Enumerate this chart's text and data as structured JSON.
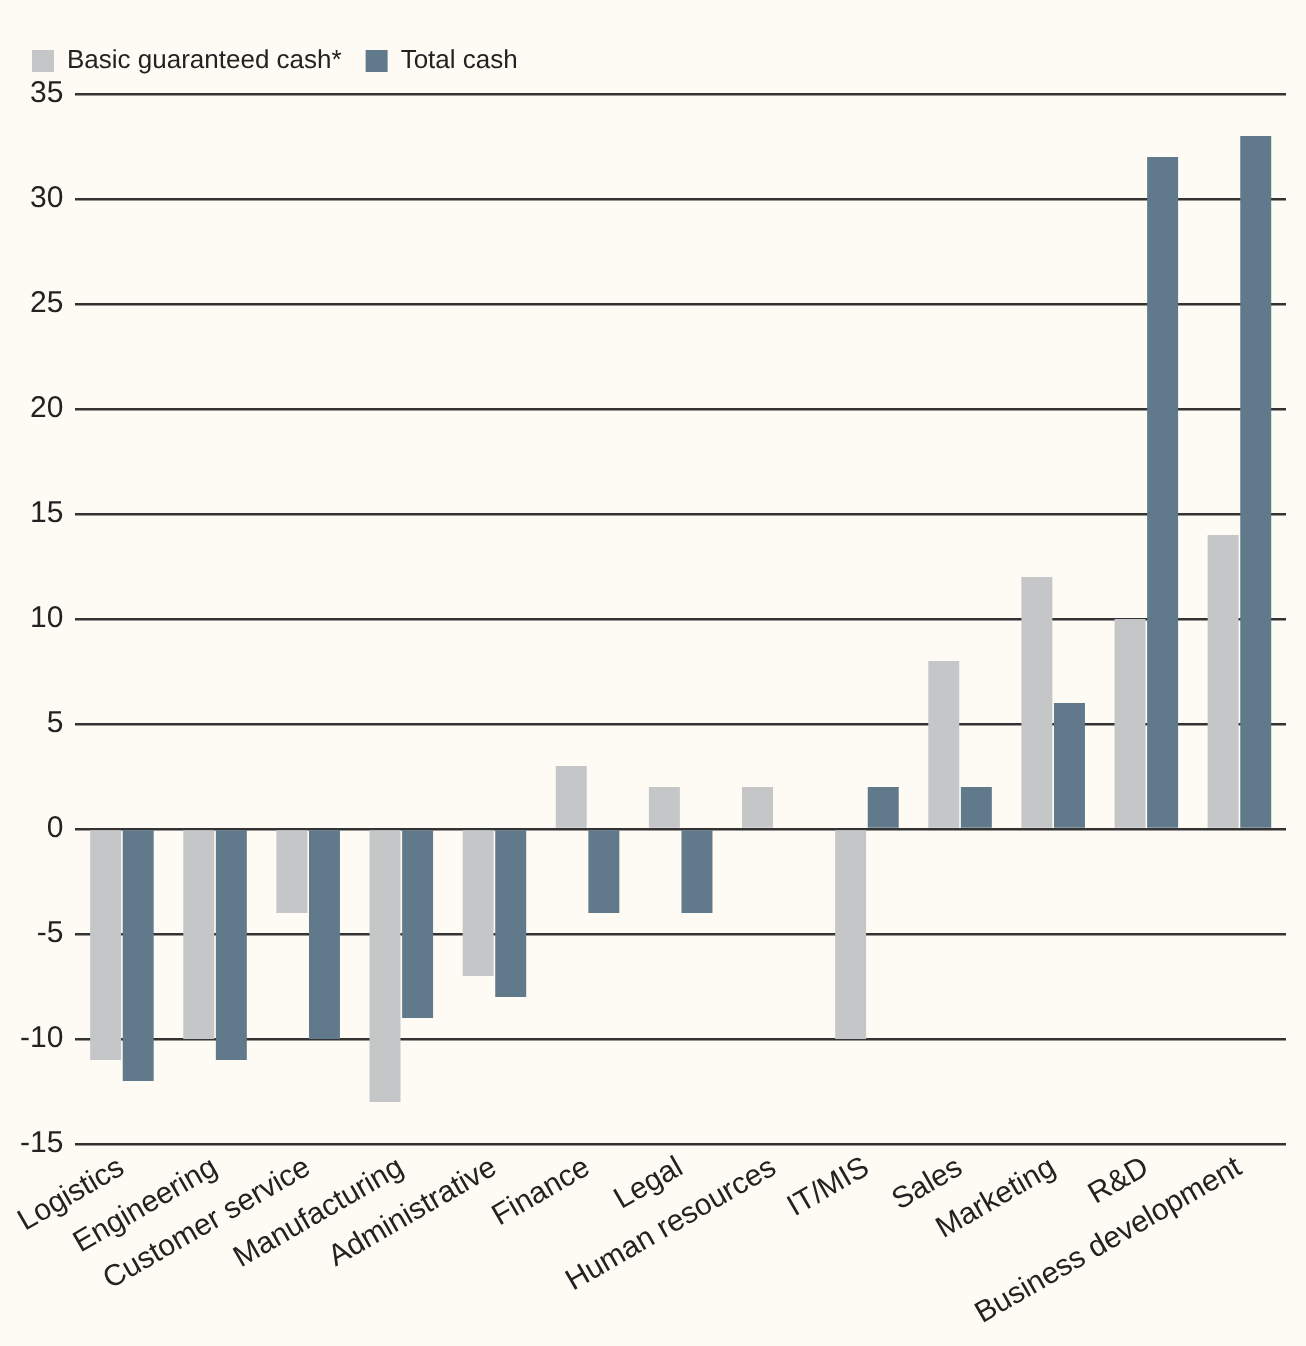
{
  "chart_data": {
    "type": "bar",
    "categories": [
      "Logistics",
      "Engineering",
      "Customer service",
      "Manufacturing",
      "Administrative",
      "Finance",
      "Legal",
      "Human resources",
      "IT/MIS",
      "Sales",
      "Marketing",
      "R&D",
      "Business development"
    ],
    "series": [
      {
        "name": "Basic guaranteed cash*",
        "color": "#c4c6c8",
        "values": [
          -11,
          -10,
          -4,
          -13,
          -7,
          3,
          2,
          2,
          -10,
          8,
          12,
          10,
          14
        ]
      },
      {
        "name": "Total cash",
        "color": "#607a8c",
        "values": [
          -12,
          -11,
          -10,
          -9,
          -8,
          -4,
          -4,
          null,
          2,
          2,
          6,
          32,
          33
        ]
      }
    ],
    "ylim": [
      -15,
      35
    ],
    "yticks": [
      -15,
      -10,
      -5,
      0,
      5,
      10,
      15,
      20,
      25,
      30,
      35
    ],
    "grid": "y",
    "legend": "top left"
  }
}
